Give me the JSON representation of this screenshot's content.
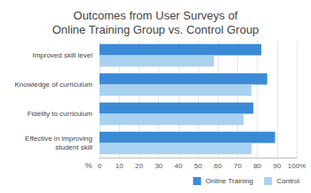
{
  "chart_data": {
    "type": "bar",
    "orientation": "horizontal",
    "title": "Outcomes from User Surveys of\nOnline Training Group vs. Control Group",
    "xlabel": "%",
    "categories": [
      "Improved skill level",
      "Knowledge of curriculum",
      "Fidelity to curriculum",
      "Effective in improving\nstudent skill"
    ],
    "series": [
      {
        "name": "Online Training",
        "color": "#3b8ad6",
        "values": [
          82,
          85,
          78,
          89
        ]
      },
      {
        "name": "Control",
        "color": "#a9d1f0",
        "values": [
          58,
          77,
          73,
          77
        ]
      }
    ],
    "xlim": [
      0,
      100
    ],
    "xticks": [
      0,
      10,
      20,
      30,
      40,
      50,
      60,
      70,
      80,
      90,
      {
        "value": 100,
        "label": "100%"
      }
    ],
    "grid": true,
    "legend": "bottom-right"
  }
}
